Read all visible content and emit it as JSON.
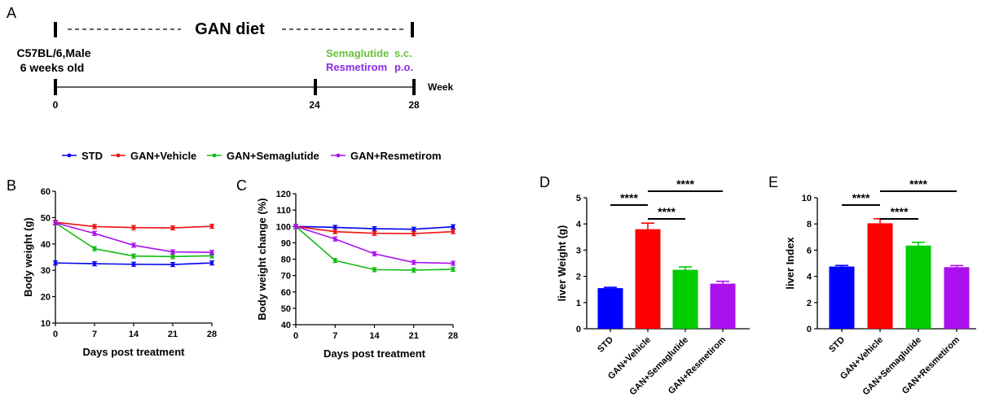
{
  "panels": {
    "a": "A",
    "b": "B",
    "c": "C",
    "d": "D",
    "e": "E"
  },
  "timeline": {
    "title": "GAN diet",
    "mouse_line1": "C57BL/6,Male",
    "mouse_line2": "6 weeks old",
    "treat1_name": "Semaglutide",
    "treat1_route": "s.c.",
    "treat2_name": "Resmetirom",
    "treat2_route": "p.o.",
    "unit": "Week",
    "ticks": [
      "0",
      "24",
      "28"
    ],
    "treat1_color": "#6abf3c",
    "treat2_color": "#8a2be2"
  },
  "legend": [
    {
      "name": "STD",
      "color": "#0000ee"
    },
    {
      "name": "GAN+Vehicle",
      "color": "#ee1111"
    },
    {
      "name": "GAN+Semaglutide",
      "color": "#11bb11"
    },
    {
      "name": "GAN+Resmetirom",
      "color": "#aa11ee"
    }
  ],
  "chart_data": [
    {
      "type": "line",
      "panel": "B",
      "x": [
        0,
        7,
        14,
        21,
        28
      ],
      "xlim": [
        0,
        28
      ],
      "ylim": [
        10,
        60
      ],
      "xticks": [
        "0",
        "7",
        "14",
        "21",
        "28"
      ],
      "yticks": [
        "10",
        "20",
        "30",
        "40",
        "50",
        "60"
      ],
      "xlabel": "Days post treatment",
      "ylabel": "Body weight (g)",
      "series": [
        {
          "name": "STD",
          "color": "#0000ee",
          "values": [
            32.8,
            32.5,
            32.3,
            32.2,
            32.8
          ]
        },
        {
          "name": "GAN+Vehicle",
          "color": "#ee1111",
          "values": [
            48.2,
            46.6,
            46.2,
            46.1,
            46.7
          ]
        },
        {
          "name": "GAN+Semaglutide",
          "color": "#11bb11",
          "values": [
            48.0,
            38.2,
            35.4,
            35.2,
            35.5
          ]
        },
        {
          "name": "GAN+Resmetirom",
          "color": "#aa11ee",
          "values": [
            48.0,
            44.0,
            39.5,
            37.0,
            36.8
          ]
        }
      ]
    },
    {
      "type": "line",
      "panel": "C",
      "x": [
        0,
        7,
        14,
        21,
        28
      ],
      "xlim": [
        0,
        28
      ],
      "ylim": [
        40,
        120
      ],
      "xticks": [
        "0",
        "7",
        "14",
        "21",
        "28"
      ],
      "yticks": [
        "40",
        "50",
        "60",
        "70",
        "80",
        "90",
        "100",
        "110",
        "120"
      ],
      "xlabel": "Days post treatment",
      "ylabel": "Body weight change (%)",
      "series": [
        {
          "name": "STD",
          "color": "#0000ee",
          "values": [
            100,
            99.4,
            98.6,
            98.3,
            99.8
          ]
        },
        {
          "name": "GAN+Vehicle",
          "color": "#ee1111",
          "values": [
            100,
            96.8,
            95.8,
            95.6,
            96.8
          ]
        },
        {
          "name": "GAN+Semaglutide",
          "color": "#11bb11",
          "values": [
            100,
            79.2,
            73.6,
            73.3,
            73.8
          ]
        },
        {
          "name": "GAN+Resmetirom",
          "color": "#aa11ee",
          "values": [
            100,
            92.3,
            83.3,
            78.0,
            77.5
          ]
        }
      ]
    },
    {
      "type": "bar",
      "panel": "D",
      "categories": [
        "STD",
        "GAN+Vehicle",
        "GAN+Semaglutide",
        "GAN+Resmetirom"
      ],
      "values": [
        1.55,
        3.8,
        2.25,
        1.72
      ],
      "errors": [
        0.03,
        0.23,
        0.11,
        0.09
      ],
      "colors": [
        "#0000ff",
        "#ff0000",
        "#00cc00",
        "#aa11ee"
      ],
      "ylim": [
        0,
        5
      ],
      "yticks": [
        "0",
        "1",
        "2",
        "3",
        "4",
        "5"
      ],
      "ylabel": "liver Weight (g)",
      "significance": [
        {
          "from": 0,
          "to": 1,
          "label": "****"
        },
        {
          "from": 1,
          "to": 2,
          "label": "****"
        },
        {
          "from": 1,
          "to": 3,
          "label": "****"
        }
      ]
    },
    {
      "type": "bar",
      "panel": "E",
      "categories": [
        "STD",
        "GAN+Vehicle",
        "GAN+Semaglutide",
        "GAN+Resmetirom"
      ],
      "values": [
        4.75,
        8.05,
        6.35,
        4.7
      ],
      "errors": [
        0.08,
        0.35,
        0.25,
        0.12
      ],
      "colors": [
        "#0000ff",
        "#ff0000",
        "#00cc00",
        "#aa11ee"
      ],
      "ylim": [
        0,
        10
      ],
      "yticks": [
        "0",
        "2",
        "4",
        "6",
        "8",
        "10"
      ],
      "ylabel": "liver Index",
      "significance": [
        {
          "from": 0,
          "to": 1,
          "label": "****"
        },
        {
          "from": 1,
          "to": 2,
          "label": "****"
        },
        {
          "from": 1,
          "to": 3,
          "label": "****"
        }
      ]
    }
  ]
}
